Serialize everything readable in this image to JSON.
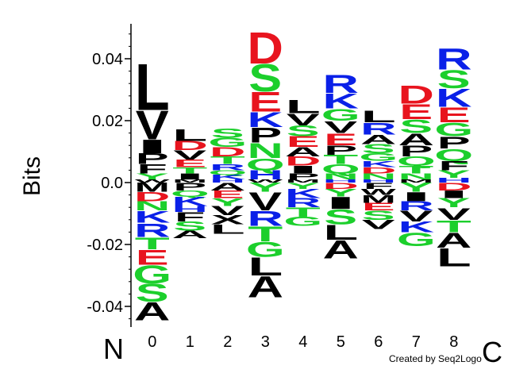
{
  "chart_data": {
    "type": "sequence-logo",
    "ylabel": "Bits",
    "ylim": [
      -0.045,
      0.05
    ],
    "yticks": [
      {
        "value": 0.04,
        "label": "0.04"
      },
      {
        "value": 0.02,
        "label": "0.02"
      },
      {
        "value": 0.0,
        "label": "0.0"
      },
      {
        "value": -0.02,
        "label": "-0.02"
      },
      {
        "value": -0.04,
        "label": "-0.04"
      }
    ],
    "n_label": "N",
    "c_label": "C",
    "credit": "Created by Seq2Logo",
    "colors": {
      "acidic": "#e8141e",
      "basic": "#0a20e8",
      "polar": "#1ccf2c",
      "hydrophobic": "#000000"
    },
    "positions": [
      {
        "label": "0",
        "positive": [
          [
            "L",
            0.0155
          ],
          [
            "V",
            0.0095
          ],
          [
            "I",
            0.0045
          ],
          [
            "P",
            0.0035
          ],
          [
            "F",
            0.003
          ],
          [
            "Y",
            0.002
          ],
          [
            "W",
            0.001
          ]
        ],
        "negative": [
          [
            "M",
            0.003
          ],
          [
            "D",
            0.003
          ],
          [
            "N",
            0.003
          ],
          [
            "K",
            0.004
          ],
          [
            "R",
            0.0045
          ],
          [
            "T",
            0.004
          ],
          [
            "E",
            0.005
          ],
          [
            "G",
            0.006
          ],
          [
            "S",
            0.006
          ],
          [
            "A",
            0.006
          ]
        ]
      },
      {
        "label": "1",
        "positive": [
          [
            "L",
            0.004
          ],
          [
            "D",
            0.003
          ],
          [
            "V",
            0.003
          ],
          [
            "E",
            0.0025
          ],
          [
            "T",
            0.002
          ],
          [
            "I",
            0.002
          ],
          [
            "M",
            0.001
          ]
        ],
        "negative": [
          [
            "P",
            0.0025
          ],
          [
            "Q",
            0.002
          ],
          [
            "K",
            0.003
          ],
          [
            "H",
            0.002
          ],
          [
            "F",
            0.003
          ],
          [
            "S",
            0.003
          ],
          [
            "A",
            0.0025
          ]
        ]
      },
      {
        "label": "2",
        "positive": [
          [
            "S",
            0.003
          ],
          [
            "G",
            0.003
          ],
          [
            "D",
            0.003
          ],
          [
            "T",
            0.0025
          ],
          [
            "R",
            0.002
          ],
          [
            "Q",
            0.0015
          ],
          [
            "K",
            0.0015
          ],
          [
            "H",
            0.001
          ]
        ],
        "negative": [
          [
            "A",
            0.0025
          ],
          [
            "E",
            0.0025
          ],
          [
            "Y",
            0.0025
          ],
          [
            "V",
            0.003
          ],
          [
            "X",
            0.003
          ],
          [
            "L",
            0.003
          ]
        ]
      },
      {
        "label": "3",
        "positive": [
          [
            "D",
            0.0105
          ],
          [
            "S",
            0.009
          ],
          [
            "E",
            0.0065
          ],
          [
            "K",
            0.005
          ],
          [
            "P",
            0.005
          ],
          [
            "N",
            0.005
          ],
          [
            "Q",
            0.004
          ],
          [
            "H",
            0.003
          ],
          [
            "W",
            0.001
          ]
        ],
        "negative": [
          [
            "Y",
            0.003
          ],
          [
            "V",
            0.006
          ],
          [
            "R",
            0.005
          ],
          [
            "T",
            0.005
          ],
          [
            "G",
            0.005
          ],
          [
            "L",
            0.006
          ],
          [
            "A",
            0.007
          ]
        ]
      },
      {
        "label": "4",
        "positive": [
          [
            "L",
            0.0045
          ],
          [
            "V",
            0.004
          ],
          [
            "S",
            0.0035
          ],
          [
            "E",
            0.0035
          ],
          [
            "A",
            0.003
          ],
          [
            "D",
            0.003
          ],
          [
            "I",
            0.0025
          ],
          [
            "P",
            0.002
          ],
          [
            "M",
            0.001
          ]
        ],
        "negative": [
          [
            "Y",
            0.002
          ],
          [
            "K",
            0.003
          ],
          [
            "R",
            0.003
          ],
          [
            "T",
            0.003
          ],
          [
            "G",
            0.003
          ]
        ]
      },
      {
        "label": "5",
        "positive": [
          [
            "R",
            0.006
          ],
          [
            "K",
            0.005
          ],
          [
            "G",
            0.004
          ],
          [
            "V",
            0.004
          ],
          [
            "E",
            0.004
          ],
          [
            "P",
            0.003
          ],
          [
            "T",
            0.003
          ],
          [
            "Q",
            0.003
          ],
          [
            "N",
            0.002
          ],
          [
            "H",
            0.001
          ]
        ],
        "negative": [
          [
            "D",
            0.002
          ],
          [
            "Y",
            0.0025
          ],
          [
            "I",
            0.004
          ],
          [
            "S",
            0.005
          ],
          [
            "L",
            0.005
          ],
          [
            "A",
            0.006
          ]
        ]
      },
      {
        "label": "6",
        "positive": [
          [
            "L",
            0.004
          ],
          [
            "R",
            0.004
          ],
          [
            "A",
            0.003
          ],
          [
            "S",
            0.003
          ],
          [
            "G",
            0.0025
          ],
          [
            "K",
            0.002
          ],
          [
            "D",
            0.002
          ],
          [
            "N",
            0.002
          ],
          [
            "H",
            0.001
          ]
        ],
        "negative": [
          [
            "F",
            0.002
          ],
          [
            "W",
            0.002
          ],
          [
            "M",
            0.0025
          ],
          [
            "E",
            0.0025
          ],
          [
            "S",
            0.003
          ],
          [
            "V",
            0.003
          ]
        ]
      },
      {
        "label": "7",
        "positive": [
          [
            "D",
            0.006
          ],
          [
            "E",
            0.005
          ],
          [
            "S",
            0.0045
          ],
          [
            "A",
            0.004
          ],
          [
            "P",
            0.0035
          ],
          [
            "Q",
            0.003
          ],
          [
            "T",
            0.0025
          ],
          [
            "N",
            0.002
          ],
          [
            "M",
            0.001
          ]
        ],
        "negative": [
          [
            "Y",
            0.003
          ],
          [
            "I",
            0.003
          ],
          [
            "R",
            0.003
          ],
          [
            "V",
            0.0035
          ],
          [
            "K",
            0.0035
          ],
          [
            "G",
            0.0045
          ]
        ]
      },
      {
        "label": "8",
        "positive": [
          [
            "R",
            0.007
          ],
          [
            "S",
            0.006
          ],
          [
            "K",
            0.006
          ],
          [
            "E",
            0.005
          ],
          [
            "G",
            0.0045
          ],
          [
            "P",
            0.004
          ],
          [
            "Q",
            0.004
          ],
          [
            "F",
            0.003
          ],
          [
            "Y",
            0.0025
          ],
          [
            "H",
            0.0015
          ]
        ],
        "negative": [
          [
            "D",
            0.0025
          ],
          [
            "I",
            0.0025
          ],
          [
            "Y",
            0.003
          ],
          [
            "V",
            0.004
          ],
          [
            "T",
            0.004
          ],
          [
            "A",
            0.005
          ],
          [
            "L",
            0.006
          ]
        ]
      }
    ]
  }
}
